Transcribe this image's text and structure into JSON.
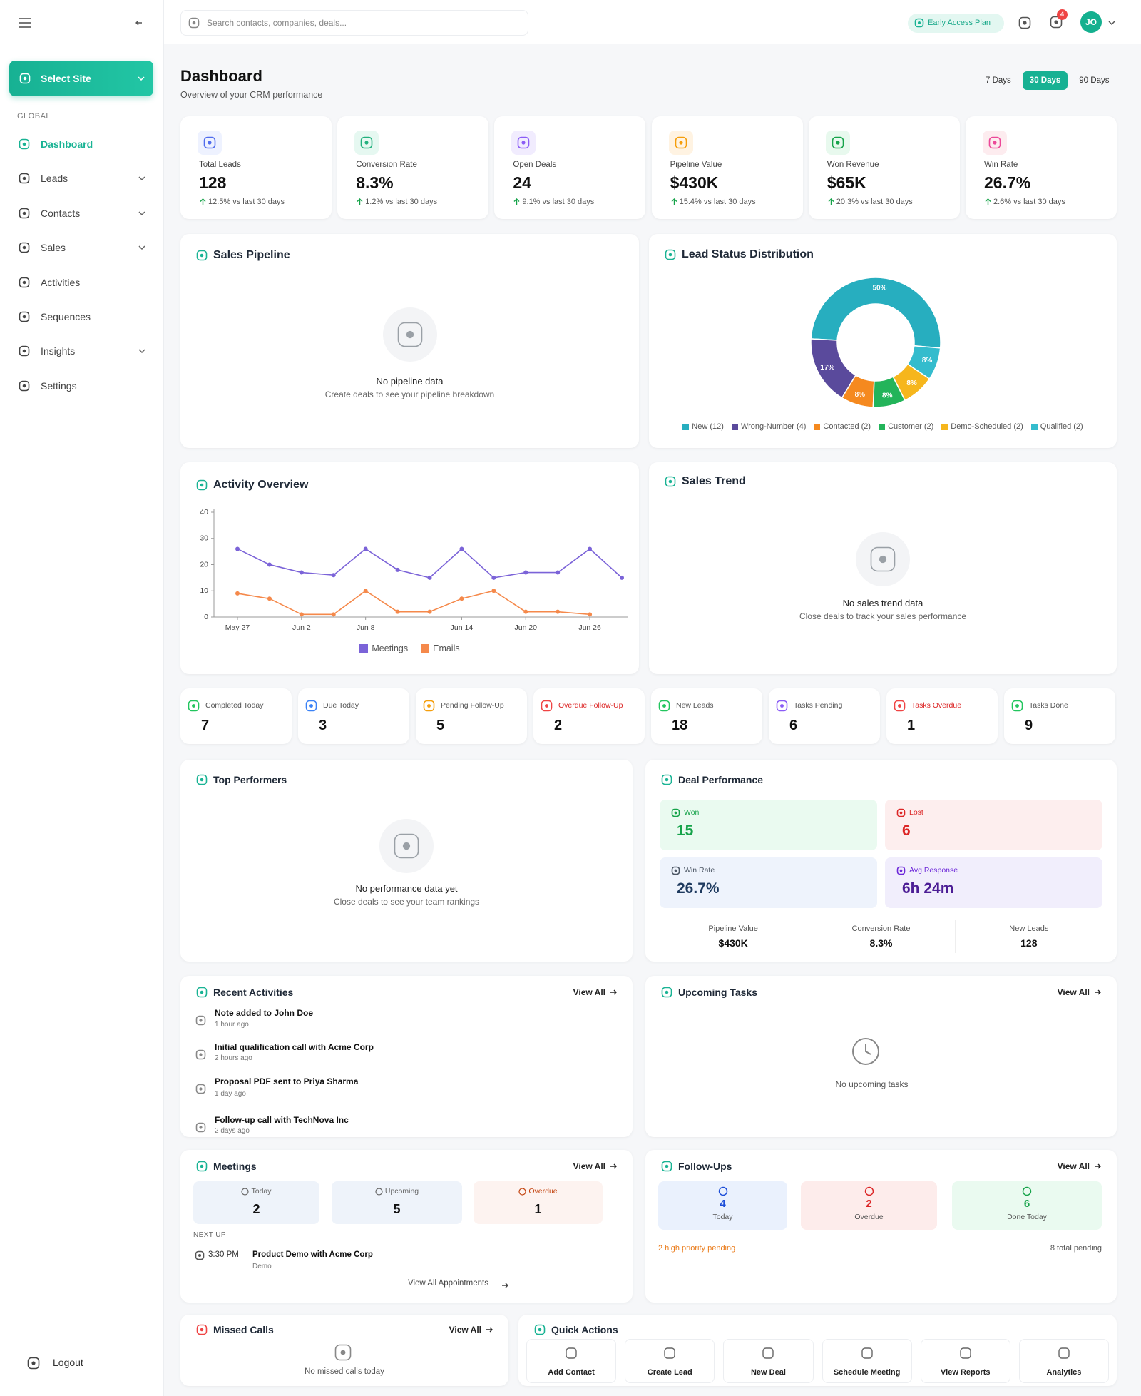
{
  "sidebar": {
    "select_site": "Select Site",
    "section": "GLOBAL",
    "nav": [
      "Dashboard",
      "Leads",
      "Contacts",
      "Sales",
      "Activities",
      "Sequences",
      "Insights",
      "Settings"
    ],
    "logout": "Logout"
  },
  "header": {
    "search": "Search contacts, companies, deals...",
    "plan": "Early Access Plan",
    "notifications": "4",
    "avatar": "JO"
  },
  "page": {
    "title": "Dashboard",
    "subtitle": "Overview of your CRM performance",
    "periods": [
      "7 Days",
      "30 Days",
      "90 Days"
    ]
  },
  "kpis": [
    {
      "label": "Total Leads",
      "value": "128",
      "change": "12.5% vs last 30 days"
    },
    {
      "label": "Conversion Rate",
      "value": "8.3%",
      "change": "1.2% vs last 30 days"
    },
    {
      "label": "Open Deals",
      "value": "24",
      "change": "9.1% vs last 30 days"
    },
    {
      "label": "Pipeline Value",
      "value": "$430K",
      "change": "15.4% vs last 30 days"
    },
    {
      "label": "Won Revenue",
      "value": "$65K",
      "change": "20.3% vs last 30 days"
    },
    {
      "label": "Win Rate",
      "value": "26.7%",
      "change": "2.6% vs last 30 days"
    }
  ],
  "sales_pipeline": {
    "title": "Sales Pipeline",
    "empty_title": "No pipeline data",
    "empty_text": "Create deals to see your pipeline breakdown"
  },
  "lead_status": {
    "title": "Lead Status Distribution",
    "chart_data": {
      "type": "pie",
      "categories": [
        "New (12)",
        "Wrong-Number (4)",
        "Contacted (2)",
        "Customer (2)",
        "Demo-Scheduled (2)",
        "Qualified (2)"
      ],
      "values": [
        50,
        17,
        8,
        8,
        8,
        8
      ],
      "value_labels": [
        "50%",
        "17%",
        "8%",
        "8%",
        "8%",
        "8%"
      ],
      "colors": [
        "#27aebf",
        "#5a4a9c",
        "#f5891f",
        "#23b45a",
        "#f6b61c",
        "#34bccd"
      ]
    }
  },
  "activity_overview": {
    "title": "Activity Overview",
    "chart_data": {
      "type": "line",
      "categories": [
        "May 27",
        null,
        "Jun 2",
        null,
        "Jun 8",
        null,
        null,
        "Jun 14",
        null,
        "Jun 20",
        null,
        "Jun 26",
        null
      ],
      "series": [
        {
          "name": "Meetings",
          "color": "#7b63d8",
          "values": [
            26,
            20,
            17,
            16,
            26,
            18,
            15,
            26,
            15,
            17,
            17,
            26,
            15
          ]
        },
        {
          "name": "Emails",
          "color": "#f5894b",
          "values": [
            9,
            7,
            1,
            1,
            10,
            2,
            2,
            7,
            10,
            2,
            2,
            1,
            null
          ]
        }
      ],
      "ylim": [
        0,
        40
      ],
      "yticks": [
        0,
        10,
        20,
        30,
        40
      ]
    }
  },
  "sales_trend": {
    "title": "Sales Trend",
    "empty_title": "No sales trend data",
    "empty_text": "Close deals to track your sales performance"
  },
  "stats": [
    {
      "label": "Completed Today",
      "value": "7"
    },
    {
      "label": "Due Today",
      "value": "3"
    },
    {
      "label": "Pending Follow-Up",
      "value": "5"
    },
    {
      "label": "Overdue Follow-Up",
      "value": "2"
    },
    {
      "label": "New Leads",
      "value": "18"
    },
    {
      "label": "Tasks Pending",
      "value": "6"
    },
    {
      "label": "Tasks Overdue",
      "value": "1"
    },
    {
      "label": "Tasks Done",
      "value": "9"
    }
  ],
  "top_performers": {
    "title": "Top Performers",
    "empty_title": "No performance data yet",
    "empty_text": "Close deals to see your team rankings"
  },
  "deal_performance": {
    "title": "Deal Performance",
    "tiles": [
      {
        "label": "Won",
        "value": "15"
      },
      {
        "label": "Lost",
        "value": "6"
      },
      {
        "label": "Win Rate",
        "value": "26.7%"
      },
      {
        "label": "Avg Response",
        "value": "6h 24m"
      }
    ],
    "metrics": [
      {
        "label": "Pipeline Value",
        "value": "$430K"
      },
      {
        "label": "Conversion Rate",
        "value": "8.3%"
      },
      {
        "label": "New Leads",
        "value": "128"
      }
    ]
  },
  "recent_activities": {
    "title": "Recent Activities",
    "view_all": "View All",
    "items": [
      {
        "text": "Note added to John Doe",
        "time": "1 hour ago"
      },
      {
        "text": "Initial qualification call with Acme Corp",
        "time": "2 hours ago"
      },
      {
        "text": "Proposal PDF sent to Priya Sharma",
        "time": "1 day ago"
      },
      {
        "text": "Follow-up call with TechNova Inc",
        "time": "2 days ago"
      }
    ]
  },
  "upcoming_tasks": {
    "title": "Upcoming Tasks",
    "view_all": "View All",
    "empty_text": "No upcoming tasks"
  },
  "meetings": {
    "title": "Meetings",
    "view_all": "View All",
    "tiles": [
      {
        "label": "Today",
        "value": "2"
      },
      {
        "label": "Upcoming",
        "value": "5"
      },
      {
        "label": "Overdue",
        "value": "1"
      }
    ],
    "next_up_label": "NEXT UP",
    "next_up": {
      "time": "3:30 PM",
      "title": "Product Demo with Acme Corp",
      "type": "Demo"
    },
    "view_all_appointments": "View All Appointments"
  },
  "follow_ups": {
    "title": "Follow-Ups",
    "view_all": "View All",
    "tiles": [
      {
        "value": "4",
        "label": "Today"
      },
      {
        "value": "2",
        "label": "Overdue"
      },
      {
        "value": "6",
        "label": "Done Today"
      }
    ],
    "priority_note": "2 high priority pending",
    "total_note": "8 total pending"
  },
  "missed_calls": {
    "title": "Missed Calls",
    "view_all": "View All",
    "empty_text": "No missed calls today"
  },
  "quick_actions": {
    "title": "Quick Actions",
    "actions": [
      "Add Contact",
      "Create Lead",
      "New Deal",
      "Schedule Meeting",
      "View Reports",
      "Analytics"
    ]
  }
}
